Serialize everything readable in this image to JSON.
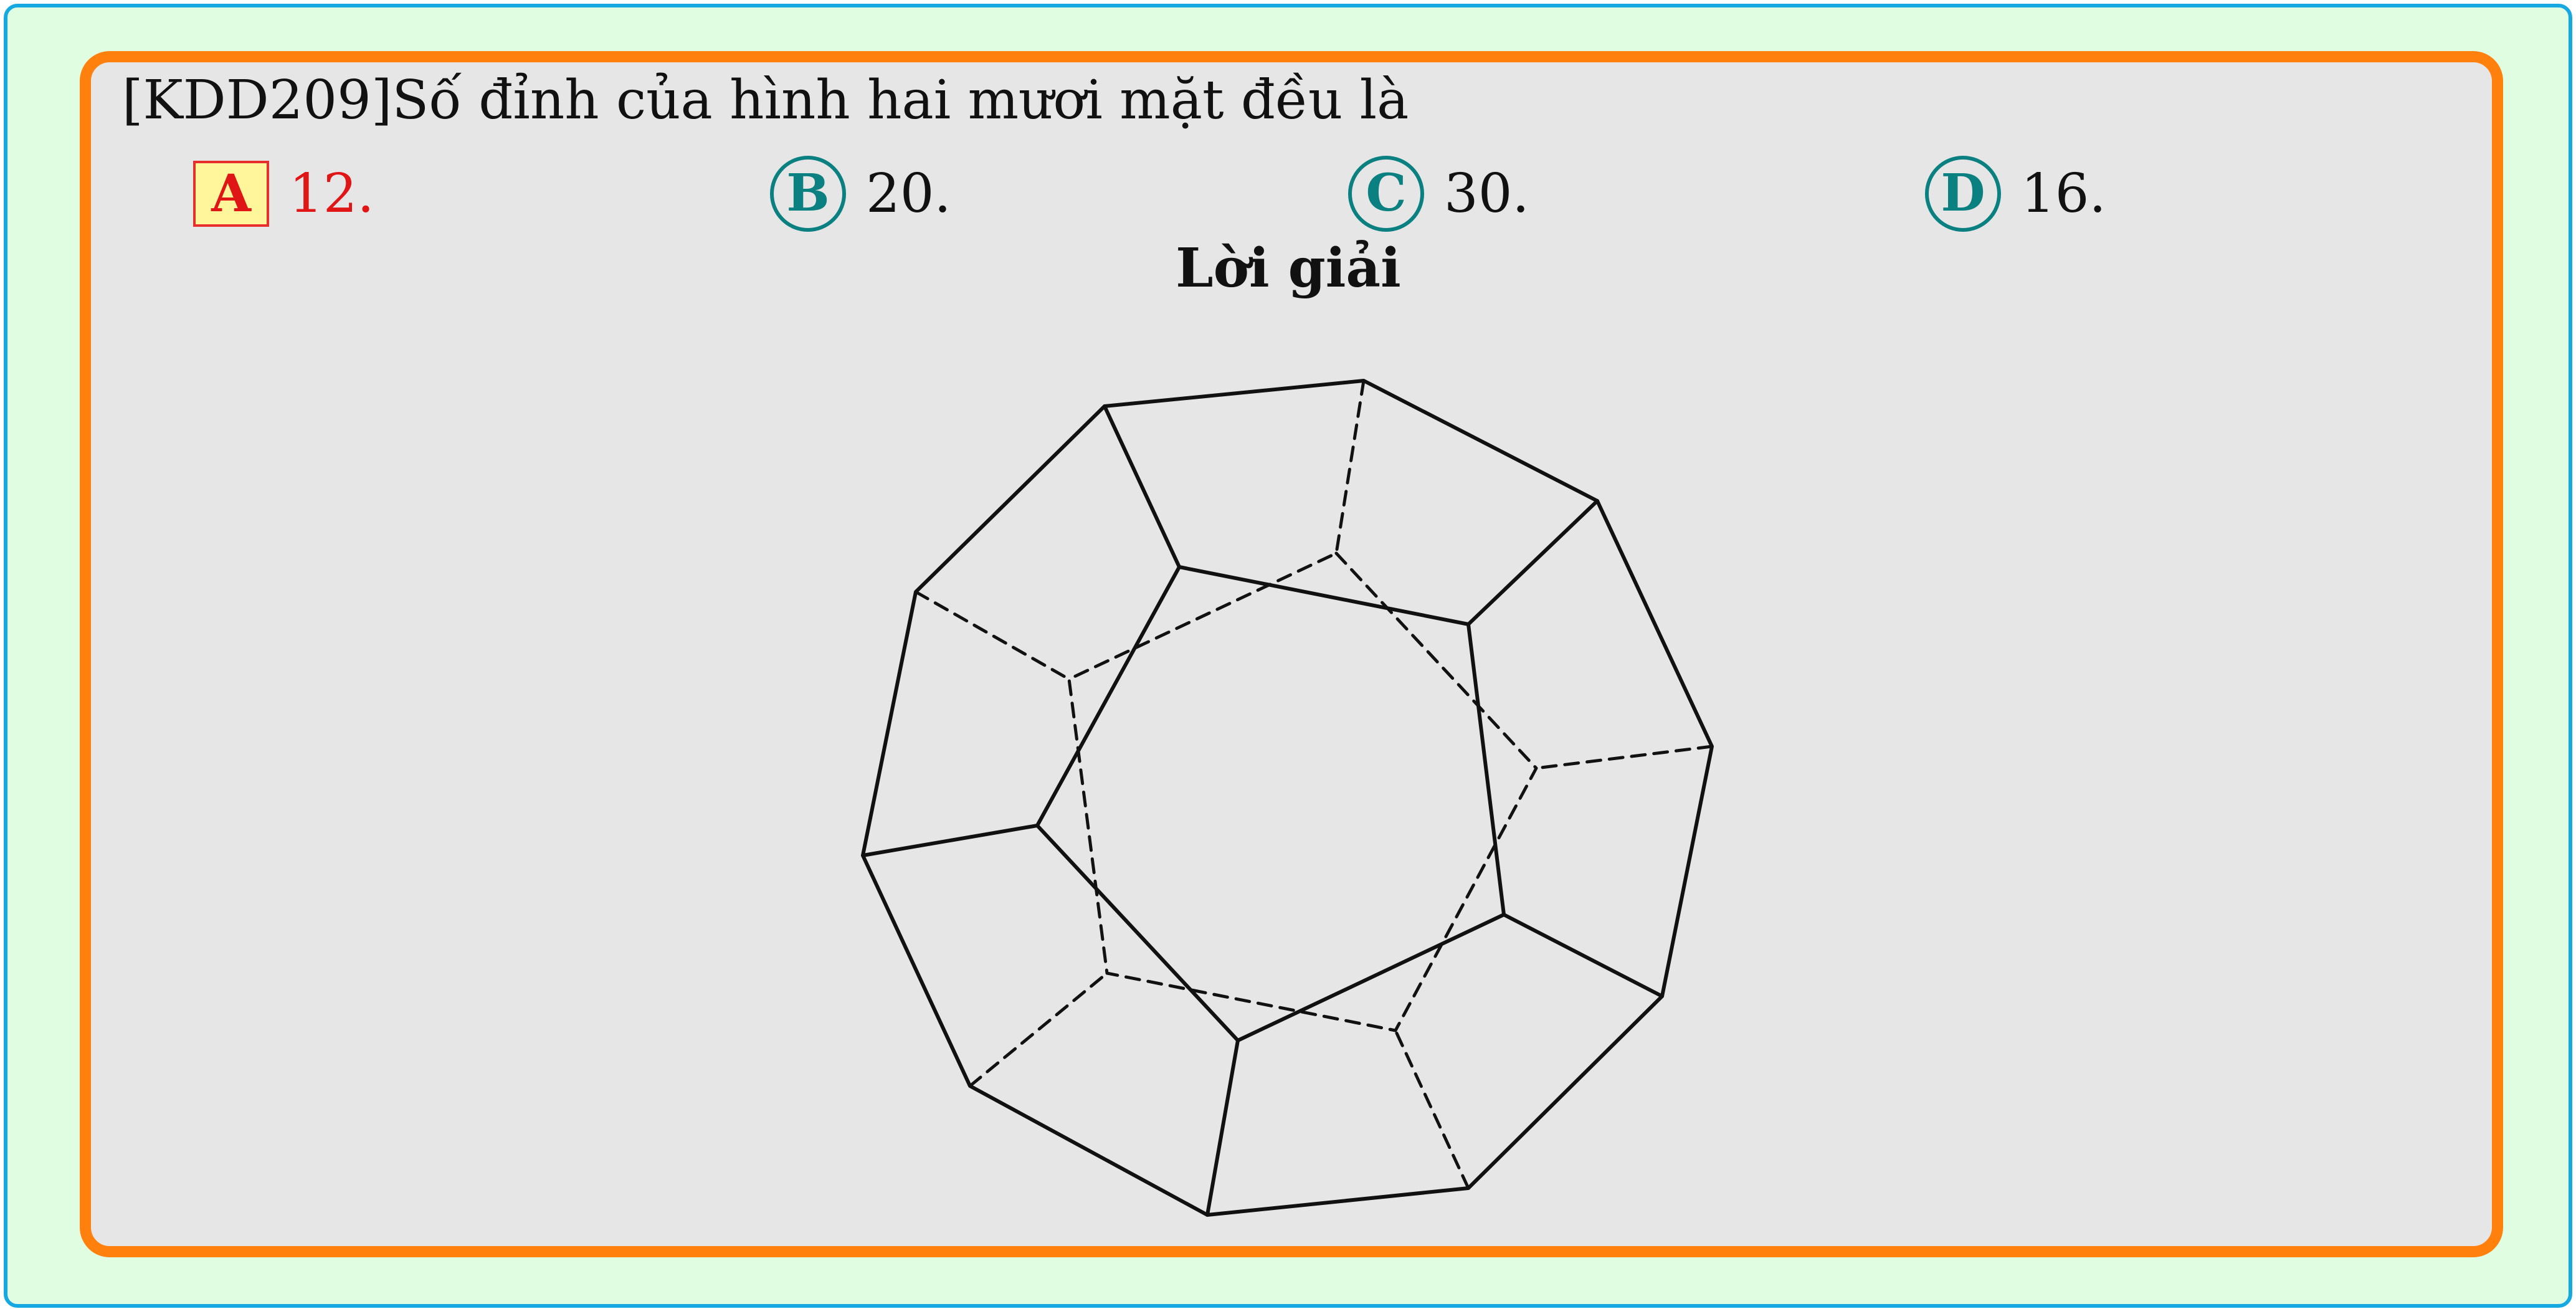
{
  "question": {
    "text": "[KDD209]Số đỉnh của hình hai mươi mặt đều là"
  },
  "options": [
    {
      "letter": "A",
      "text": "12.",
      "selected": true
    },
    {
      "letter": "B",
      "text": "20.",
      "selected": false
    },
    {
      "letter": "C",
      "text": "30.",
      "selected": false
    },
    {
      "letter": "D",
      "text": "16.",
      "selected": false
    }
  ],
  "solution": {
    "title": "Lời giải"
  },
  "colors": {
    "page_background": "#e1fde1",
    "page_border": "#16a8e0",
    "box_background": "#e6e6e6",
    "box_border": "#ff800d",
    "selected_text": "#e01616",
    "selected_fill": "#fff59a",
    "option_circle": "#0b8080",
    "line": "#111111"
  }
}
